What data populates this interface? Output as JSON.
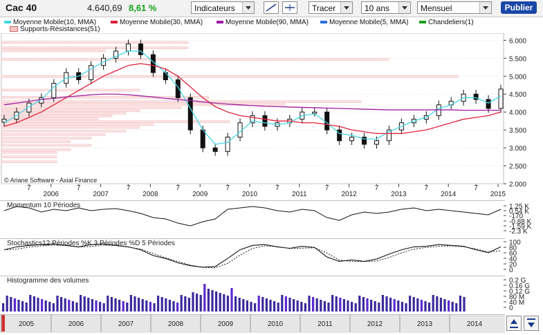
{
  "toolbar": {
    "symbol": "Cac 40",
    "price": "4.640,69",
    "change": "8,61 %",
    "indicators_label": "Indicateurs",
    "draw_label": "Tracer",
    "period_label": "10 ans",
    "interval_label": "Mensuel",
    "publish_label": "Publier"
  },
  "legend": {
    "items": [
      {
        "label": "Moyenne Mobile(10, MMA)",
        "color": "#43d6e6"
      },
      {
        "label": "Moyenne Mobile(30, MMA)",
        "color": "#e0203a"
      },
      {
        "label": "Moyenne Mobile(90, MMA)",
        "color": "#9c1ca0"
      },
      {
        "label": "Moyenne Mobile(5, MMA)",
        "color": "#2a6fe0"
      },
      {
        "label": "Chandeliers(1)",
        "color": "#1a9e1a"
      },
      {
        "label": "Supports-Résistances(51)",
        "color": "#f3c8c8"
      }
    ]
  },
  "main_chart": {
    "y_ticks": [
      "6.000",
      "5.500",
      "5.000",
      "4.500",
      "4.000",
      "3.500",
      "3.000",
      "2.500",
      "2.000"
    ],
    "years": [
      "2006",
      "2007",
      "2008",
      "2009",
      "2010",
      "2011",
      "2012",
      "2013",
      "2014",
      "2015"
    ],
    "month_marks": [
      "7",
      "7",
      "7",
      "7",
      "7",
      "7",
      "7",
      "7",
      "7",
      "7"
    ],
    "copyright": "© Ariane Software - Axial Finance"
  },
  "momentum": {
    "title": "Momentum 10 Périodes",
    "y_ticks": [
      "1.25 K",
      "0.54 K",
      "-170",
      "-0.88 K",
      "-1.59 K",
      "-2.3 K"
    ]
  },
  "stochastics": {
    "title": "Stochastics12 Périodes   %K 3 Périodes   %D 5 Périodes",
    "y_ticks": [
      "100",
      "80",
      "60",
      "40",
      "20",
      "0"
    ]
  },
  "volumes": {
    "title": "Histogramme des volumes",
    "y_ticks": [
      "0.2 G",
      "0.16 G",
      "0.12 G",
      "80 M",
      "40 M",
      "0"
    ]
  },
  "navigator": {
    "years": [
      "2005",
      "2006",
      "2007",
      "2008",
      "2009",
      "2010",
      "2011",
      "2012",
      "2013",
      "2014"
    ]
  },
  "chart_data": {
    "type": "line",
    "title": "",
    "xlabel": "",
    "ylabel": "",
    "ylim": [
      2000,
      6200
    ],
    "x": [
      "2005-01",
      "2005-04",
      "2005-07",
      "2005-10",
      "2006-01",
      "2006-04",
      "2006-07",
      "2006-10",
      "2007-01",
      "2007-04",
      "2007-07",
      "2007-10",
      "2008-01",
      "2008-04",
      "2008-07",
      "2008-10",
      "2009-01",
      "2009-04",
      "2009-07",
      "2009-10",
      "2010-01",
      "2010-04",
      "2010-07",
      "2010-10",
      "2011-01",
      "2011-04",
      "2011-07",
      "2011-10",
      "2012-01",
      "2012-04",
      "2012-07",
      "2012-10",
      "2013-01",
      "2013-04",
      "2013-07",
      "2013-10",
      "2014-01",
      "2014-04",
      "2014-07",
      "2014-10",
      "2015-01"
    ],
    "series": [
      {
        "name": "Chandeliers(1)",
        "values": [
          3800,
          4000,
          4250,
          4400,
          4800,
          5100,
          4900,
          5300,
          5500,
          5700,
          5900,
          5600,
          5100,
          4900,
          4400,
          3500,
          3000,
          2900,
          3300,
          3700,
          3900,
          3600,
          3700,
          3800,
          4000,
          4000,
          3500,
          3200,
          3300,
          3100,
          3200,
          3500,
          3700,
          3800,
          3900,
          4200,
          4300,
          4500,
          4350,
          4100,
          4640
        ]
      },
      {
        "name": "Moyenne Mobile(10, MMA)",
        "values": [
          3700,
          3900,
          4150,
          4350,
          4700,
          4950,
          5000,
          5200,
          5400,
          5550,
          5700,
          5700,
          5400,
          5100,
          4700,
          4100,
          3500,
          3100,
          3150,
          3450,
          3750,
          3700,
          3650,
          3700,
          3900,
          3950,
          3700,
          3400,
          3350,
          3250,
          3250,
          3450,
          3600,
          3750,
          3850,
          4100,
          4200,
          4400,
          4400,
          4250,
          4450
        ]
      },
      {
        "name": "Moyenne Mobile(30, MMA)",
        "values": [
          3600,
          3700,
          3850,
          4000,
          4200,
          4400,
          4600,
          4800,
          5000,
          5150,
          5300,
          5350,
          5300,
          5200,
          5000,
          4700,
          4400,
          4150,
          4000,
          3900,
          3850,
          3800,
          3750,
          3750,
          3700,
          3700,
          3650,
          3600,
          3500,
          3450,
          3400,
          3400,
          3400,
          3450,
          3500,
          3600,
          3700,
          3800,
          3850,
          3900,
          4000
        ]
      },
      {
        "name": "Moyenne Mobile(90, MMA)",
        "values": [
          4200,
          4250,
          4300,
          4350,
          4380,
          4420,
          4450,
          4480,
          4500,
          4500,
          4480,
          4450,
          4420,
          4380,
          4350,
          4320,
          4280,
          4250,
          4220,
          4200,
          4180,
          4160,
          4150,
          4140,
          4130,
          4120,
          4110,
          4100,
          4090,
          4080,
          4070,
          4060,
          4060,
          4060,
          4060,
          4060,
          4060,
          4050,
          4050,
          4050,
          4050
        ]
      }
    ]
  }
}
